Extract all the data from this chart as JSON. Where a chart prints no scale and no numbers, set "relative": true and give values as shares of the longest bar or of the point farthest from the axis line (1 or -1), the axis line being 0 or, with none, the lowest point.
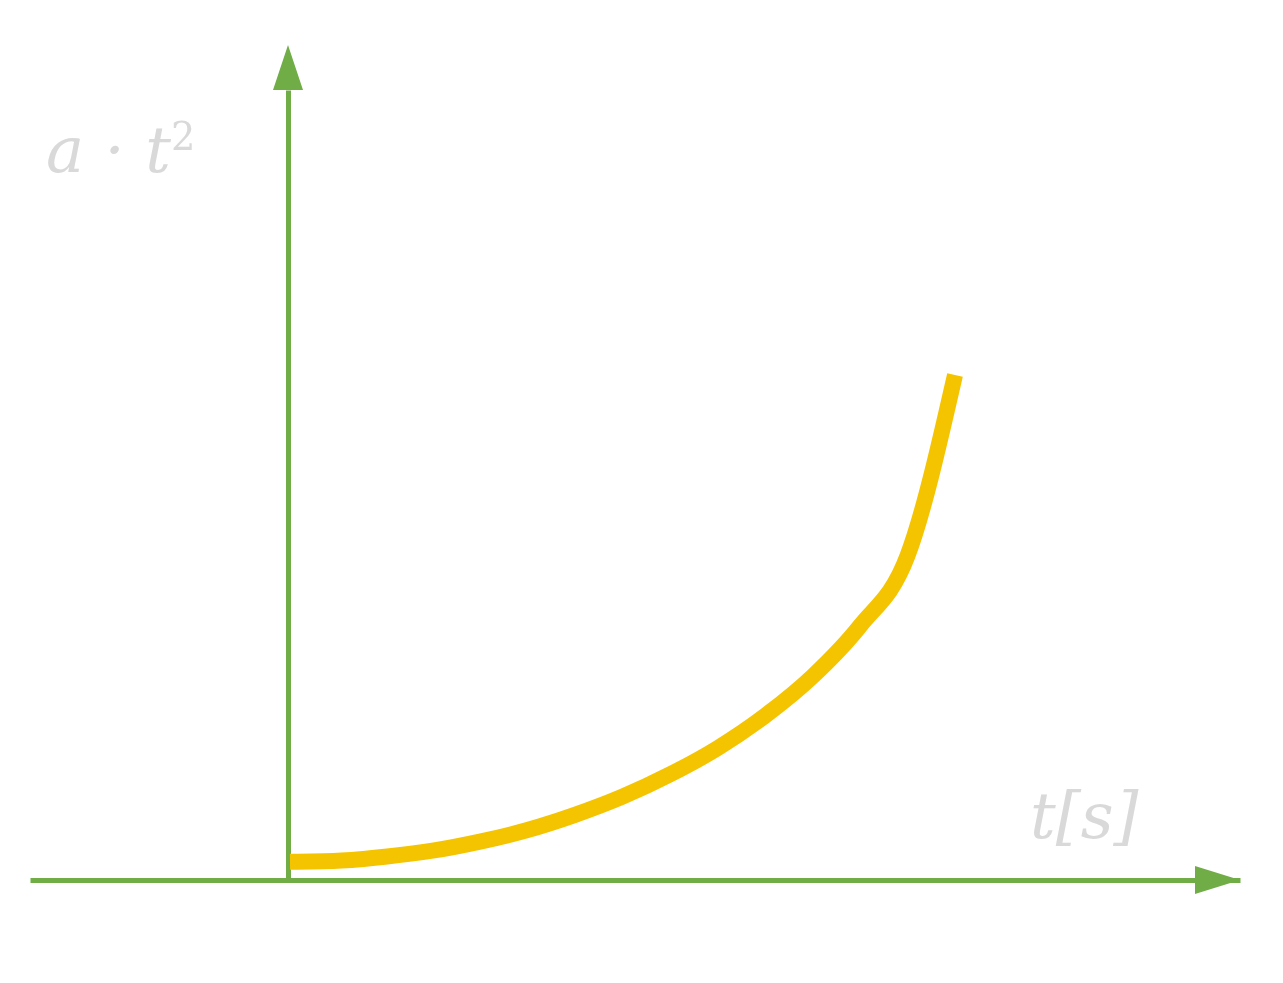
{
  "chart_data": {
    "type": "line",
    "xlabel": "t[s]",
    "ylabel": "a · t$^{2}$",
    "relative": true,
    "categories": [
      null,
      null,
      null,
      null,
      null,
      null,
      null,
      null,
      null,
      null,
      null,
      null,
      null,
      null,
      null,
      null,
      null,
      null,
      null,
      null,
      null
    ],
    "series": [
      {
        "color": "#f5c400",
        "values": [
          0.036,
          0.038,
          0.046,
          0.058,
          0.076,
          0.099,
          0.129,
          0.165,
          0.209,
          0.261,
          0.325,
          0.403,
          0.503,
          0.642,
          1,
          null,
          null,
          null,
          null,
          null,
          null
        ]
      }
    ]
  }
}
